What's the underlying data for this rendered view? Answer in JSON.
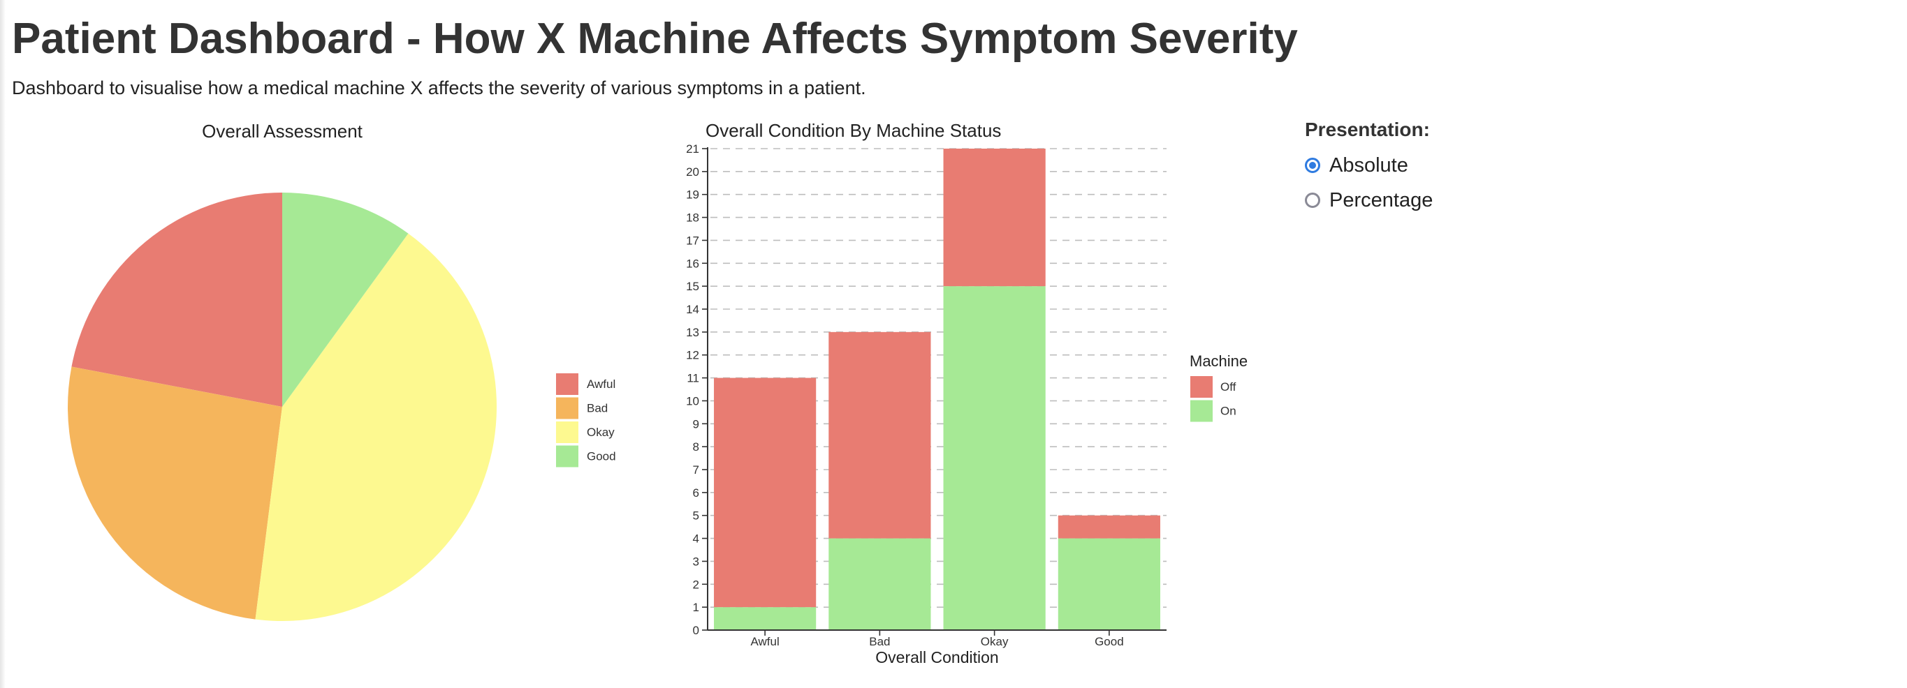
{
  "header": {
    "title": "Patient Dashboard - How X Machine Affects Symptom Severity",
    "subtitle": "Dashboard to visualise how a medical machine X affects the severity of various symptoms in a patient."
  },
  "controls": {
    "title": "Presentation:",
    "options": [
      {
        "label": "Absolute",
        "checked": true
      },
      {
        "label": "Percentage",
        "checked": false
      }
    ]
  },
  "colors": {
    "awful": "#e87c72",
    "bad": "#f5b55c",
    "okay": "#fdf990",
    "good": "#a6e995",
    "off": "#e87c72",
    "on": "#a6e995",
    "radio_accent": "#2f7be0"
  },
  "chart_data": [
    {
      "type": "pie",
      "title": "Overall Assessment",
      "categories": [
        "Awful",
        "Bad",
        "Okay",
        "Good"
      ],
      "values": [
        11,
        13,
        21,
        5
      ],
      "colors": [
        "#e87c72",
        "#f5b55c",
        "#fdf990",
        "#a6e995"
      ],
      "legend": "right"
    },
    {
      "type": "bar",
      "stacked": true,
      "title": "Overall Condition By Machine Status",
      "categories": [
        "Awful",
        "Bad",
        "Okay",
        "Good"
      ],
      "series": [
        {
          "name": "On",
          "values": [
            1,
            4,
            15,
            4
          ],
          "color": "#a6e995"
        },
        {
          "name": "Off",
          "values": [
            10,
            9,
            6,
            1
          ],
          "color": "#e87c72"
        }
      ],
      "xlabel": "Overall Condition",
      "ylabel": "",
      "ylim": [
        0,
        21
      ],
      "yticks": [
        "0",
        "1",
        "2",
        "3",
        "4",
        "5",
        "6",
        "7",
        "8",
        "9",
        "10",
        "11",
        "12",
        "13",
        "14",
        "15",
        "16",
        "17",
        "18",
        "19",
        "20",
        "21"
      ],
      "grid": true,
      "legend_title": "Machine",
      "legend": "right",
      "legend_entries": [
        "Off",
        "On"
      ]
    }
  ]
}
